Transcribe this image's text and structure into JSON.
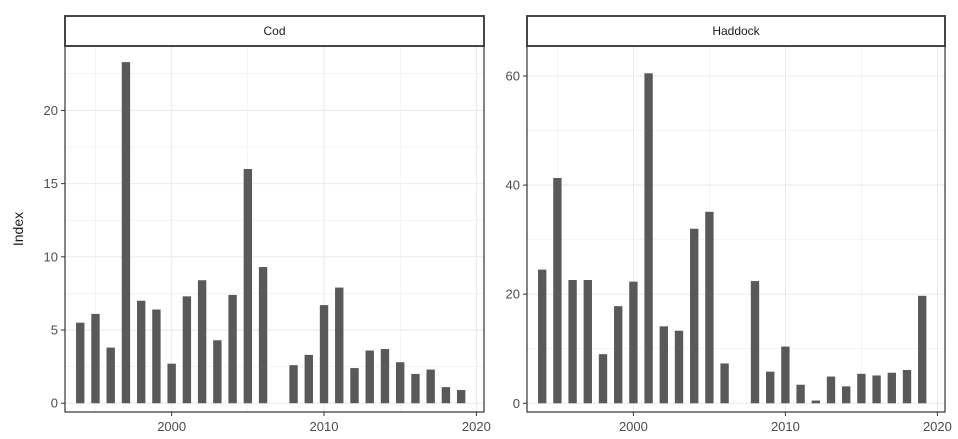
{
  "chart_data": {
    "type": "bar",
    "ylabel": "Index",
    "xlabel": "",
    "grid": true,
    "legend": "none",
    "colors": {
      "bar": "#595959",
      "grid": "#ebebeb",
      "border": "#333333",
      "strip_fill": "#ffffff"
    },
    "panels": [
      {
        "name": "Cod",
        "xlim": [
          1993,
          2020.5
        ],
        "ylim": [
          -0.6,
          24.4
        ],
        "x_ticks": [
          2000,
          2010,
          2020
        ],
        "y_ticks": [
          0,
          5,
          10,
          15,
          20
        ],
        "x": [
          1994,
          1995,
          1996,
          1997,
          1998,
          1999,
          2000,
          2001,
          2002,
          2003,
          2004,
          2005,
          2006,
          2008,
          2009,
          2010,
          2011,
          2012,
          2013,
          2014,
          2015,
          2016,
          2017,
          2018,
          2019
        ],
        "values": [
          5.5,
          6.1,
          3.8,
          23.3,
          7.0,
          6.4,
          2.7,
          7.3,
          8.4,
          4.3,
          7.4,
          16.0,
          9.3,
          2.6,
          3.3,
          6.7,
          7.9,
          2.4,
          3.6,
          3.7,
          2.8,
          2.0,
          2.3,
          1.1,
          0.9
        ]
      },
      {
        "name": "Haddock",
        "xlim": [
          1993,
          2020.5
        ],
        "ylim": [
          -1.6,
          65.5
        ],
        "x_ticks": [
          2000,
          2010,
          2020
        ],
        "y_ticks": [
          0,
          20,
          40,
          60
        ],
        "x": [
          1994,
          1995,
          1996,
          1997,
          1998,
          1999,
          2000,
          2001,
          2002,
          2003,
          2004,
          2005,
          2006,
          2008,
          2009,
          2010,
          2011,
          2012,
          2013,
          2014,
          2015,
          2016,
          2017,
          2018,
          2019
        ],
        "values": [
          24.5,
          41.3,
          22.6,
          22.6,
          9.0,
          17.8,
          22.3,
          60.5,
          14.1,
          13.3,
          32.0,
          35.1,
          7.3,
          22.4,
          5.8,
          10.4,
          3.4,
          0.5,
          4.9,
          3.1,
          5.4,
          5.1,
          5.6,
          6.1,
          19.7
        ]
      }
    ]
  }
}
